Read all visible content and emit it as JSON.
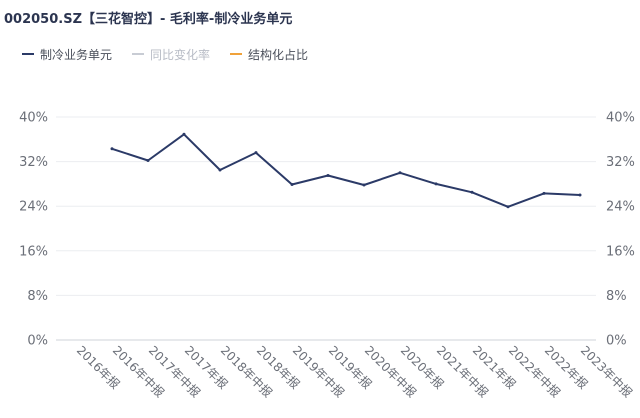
{
  "header": {
    "title": "002050.SZ【三花智控】- 毛利率-制冷业务单元"
  },
  "legend": [
    {
      "label": "制冷业务单元",
      "color": "#2b3a67",
      "muted": false
    },
    {
      "label": "同比变化率",
      "color": "#c8ccd4",
      "muted": true
    },
    {
      "label": "结构化占比",
      "color": "#f0a23a",
      "muted": false
    }
  ],
  "chart_data": {
    "type": "line",
    "x": [
      "2016年报",
      "2016年中报",
      "2017年中报",
      "2017年报",
      "2018年中报",
      "2018年报",
      "2019年中报",
      "2019年报",
      "2020年中报",
      "2020年报",
      "2021年中报",
      "2021年报",
      "2022年中报",
      "2022年报",
      "2023年中报"
    ],
    "series": [
      {
        "name": "制冷业务单元",
        "color": "#2b3a67",
        "values": [
          null,
          34.3,
          32.2,
          36.9,
          30.5,
          33.6,
          27.9,
          29.5,
          27.8,
          30.0,
          28.0,
          26.5,
          23.9,
          26.3,
          26.0
        ]
      }
    ],
    "ylim": [
      0,
      40
    ],
    "yticks": [
      "40%",
      "32%",
      "24%",
      "16%",
      "8%",
      "0%"
    ],
    "yticks_right": [
      "40%",
      "32%",
      "24%",
      "16%",
      "8%",
      "0%"
    ],
    "grid": true,
    "legend_position": "top-left"
  }
}
